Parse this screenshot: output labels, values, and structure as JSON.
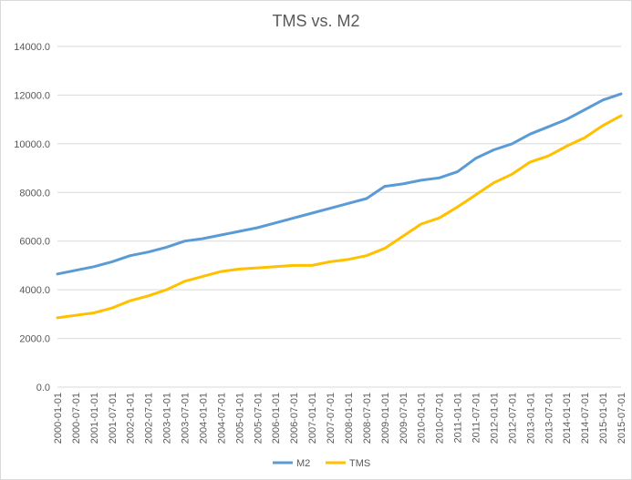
{
  "chart_data": {
    "type": "line",
    "title": "TMS vs. M2",
    "xlabel": "",
    "ylabel": "",
    "ylim": [
      0,
      14000
    ],
    "yticks": [
      "0.0",
      "2000.0",
      "4000.0",
      "6000.0",
      "8000.0",
      "10000.0",
      "12000.0",
      "14000.0"
    ],
    "xticks": [
      "2000-01-01",
      "2000-07-01",
      "2001-01-01",
      "2001-07-01",
      "2002-01-01",
      "2002-07-01",
      "2003-01-01",
      "2003-07-01",
      "2004-01-01",
      "2004-07-01",
      "2005-01-01",
      "2005-07-01",
      "2006-01-01",
      "2006-07-01",
      "2007-01-01",
      "2007-07-01",
      "2008-01-01",
      "2008-07-01",
      "2009-01-01",
      "2009-07-01",
      "2010-01-01",
      "2010-07-01",
      "2011-01-01",
      "2011-07-01",
      "2012-01-01",
      "2012-07-01",
      "2013-01-01",
      "2013-07-01",
      "2014-01-01",
      "2014-07-01",
      "2015-01-01",
      "2015-07-01"
    ],
    "grid": true,
    "legend_position": "bottom",
    "colors": {
      "M2": "#5b9bd5",
      "TMS": "#ffc000",
      "grid": "#d9d9d9",
      "text": "#595959"
    },
    "x": [
      "2000-01-01",
      "2000-07-01",
      "2001-01-01",
      "2001-07-01",
      "2002-01-01",
      "2002-07-01",
      "2003-01-01",
      "2003-07-01",
      "2004-01-01",
      "2004-07-01",
      "2005-01-01",
      "2005-07-01",
      "2006-01-01",
      "2006-07-01",
      "2007-01-01",
      "2007-07-01",
      "2008-01-01",
      "2008-07-01",
      "2009-01-01",
      "2009-07-01",
      "2010-01-01",
      "2010-07-01",
      "2011-01-01",
      "2011-07-01",
      "2012-01-01",
      "2012-07-01",
      "2013-01-01",
      "2013-07-01",
      "2014-01-01",
      "2014-07-01",
      "2015-01-01",
      "2015-07-01"
    ],
    "series": [
      {
        "name": "M2",
        "values": [
          4650,
          4800,
          4950,
          5150,
          5400,
          5550,
          5750,
          6000,
          6100,
          6250,
          6400,
          6550,
          6750,
          6950,
          7150,
          7350,
          7550,
          7750,
          8250,
          8350,
          8500,
          8600,
          8850,
          9400,
          9750,
          10000,
          10400,
          10700,
          11000,
          11400,
          11800,
          12050
        ]
      },
      {
        "name": "TMS",
        "values": [
          2850,
          2950,
          3050,
          3250,
          3550,
          3750,
          4000,
          4350,
          4550,
          4750,
          4850,
          4900,
          4950,
          5000,
          5000,
          5150,
          5250,
          5400,
          5700,
          6200,
          6700,
          6950,
          7400,
          7900,
          8400,
          8750,
          9250,
          9500,
          9900,
          10250,
          10750,
          11150
        ]
      }
    ]
  }
}
